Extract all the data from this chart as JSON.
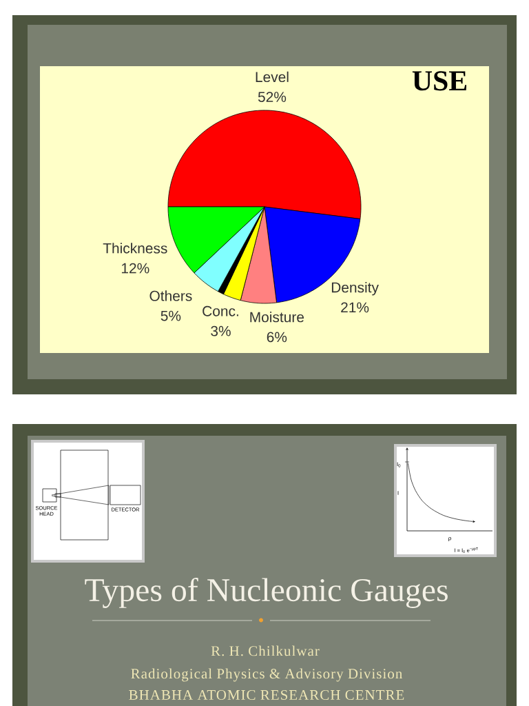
{
  "chart_data": {
    "type": "pie",
    "title": "USE",
    "categories": [
      "Level",
      "Density",
      "Moisture",
      "Conc.",
      null,
      "Others",
      "Thickness"
    ],
    "values": [
      52,
      21,
      6,
      3,
      1,
      5,
      12
    ],
    "colors": [
      "#ff0000",
      "#0000ff",
      "#ff8080",
      "#ffff00",
      "#000000",
      "#80ffff",
      "#00ff00"
    ],
    "value_labels": [
      "52%",
      "21%",
      "6%",
      "3%",
      null,
      "5%",
      "12%"
    ],
    "annotations": [
      "Types of Nucleonic Gauges",
      "R. H. Chilkulwar",
      "Radiological Physics & Advisory Division",
      "BHABHA ATOMIC RESEARCH CENTRE",
      "SOURCE HEAD",
      "DETECTOR",
      "I$_{0}$",
      "I",
      "ρ",
      "I = I$_{0}$ e$^{−μρT}$"
    ]
  }
}
